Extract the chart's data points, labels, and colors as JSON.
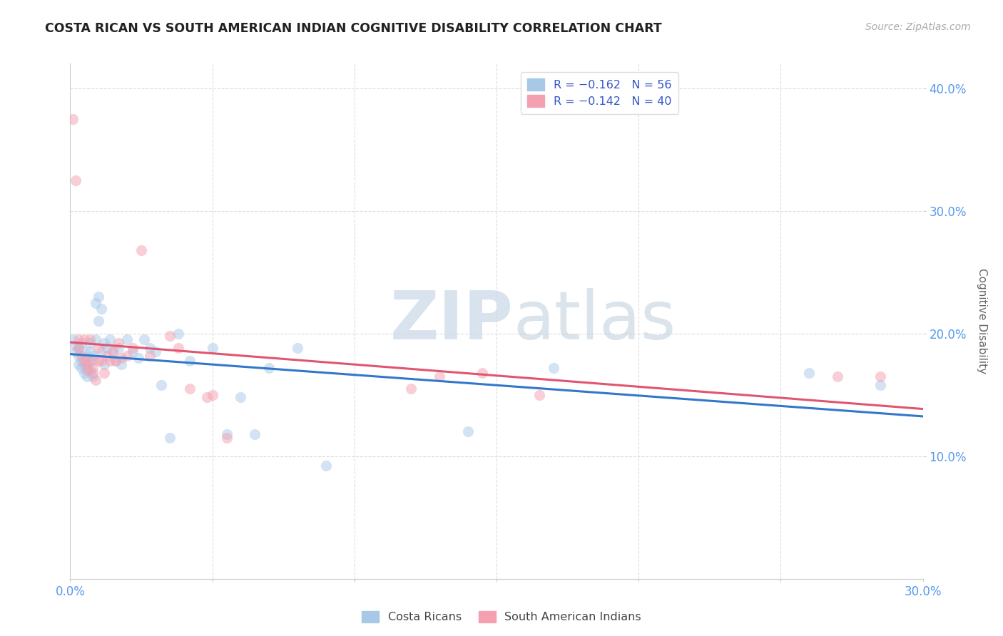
{
  "title": "COSTA RICAN VS SOUTH AMERICAN INDIAN COGNITIVE DISABILITY CORRELATION CHART",
  "source": "Source: ZipAtlas.com",
  "ylabel": "Cognitive Disability",
  "xlim": [
    0.0,
    0.3
  ],
  "ylim": [
    0.0,
    0.42
  ],
  "yticks": [
    0.1,
    0.2,
    0.3,
    0.4
  ],
  "ytick_labels": [
    "10.0%",
    "20.0%",
    "30.0%",
    "40.0%"
  ],
  "xtick_vals": [
    0.0,
    0.05,
    0.1,
    0.15,
    0.2,
    0.25,
    0.3
  ],
  "blue_color": "#a8c8e8",
  "pink_color": "#f4a0b0",
  "blue_line_color": "#3377cc",
  "pink_line_color": "#e05570",
  "watermark_zip": "ZIP",
  "watermark_atlas": "atlas",
  "costa_rican_x": [
    0.001,
    0.002,
    0.002,
    0.003,
    0.003,
    0.003,
    0.004,
    0.004,
    0.004,
    0.005,
    0.005,
    0.005,
    0.006,
    0.006,
    0.006,
    0.007,
    0.007,
    0.007,
    0.008,
    0.008,
    0.008,
    0.009,
    0.009,
    0.01,
    0.01,
    0.011,
    0.011,
    0.012,
    0.012,
    0.013,
    0.014,
    0.015,
    0.016,
    0.017,
    0.018,
    0.02,
    0.022,
    0.024,
    0.026,
    0.028,
    0.03,
    0.032,
    0.035,
    0.038,
    0.042,
    0.05,
    0.055,
    0.06,
    0.065,
    0.07,
    0.08,
    0.09,
    0.14,
    0.17,
    0.26,
    0.285
  ],
  "costa_rican_y": [
    0.195,
    0.19,
    0.185,
    0.182,
    0.175,
    0.188,
    0.192,
    0.178,
    0.172,
    0.185,
    0.168,
    0.175,
    0.165,
    0.172,
    0.18,
    0.192,
    0.17,
    0.185,
    0.178,
    0.182,
    0.165,
    0.225,
    0.195,
    0.23,
    0.21,
    0.22,
    0.185,
    0.192,
    0.175,
    0.188,
    0.195,
    0.185,
    0.178,
    0.188,
    0.175,
    0.195,
    0.185,
    0.18,
    0.195,
    0.188,
    0.185,
    0.158,
    0.115,
    0.2,
    0.178,
    0.188,
    0.118,
    0.148,
    0.118,
    0.172,
    0.188,
    0.092,
    0.12,
    0.172,
    0.168,
    0.158
  ],
  "sa_indian_x": [
    0.001,
    0.002,
    0.003,
    0.003,
    0.004,
    0.005,
    0.005,
    0.006,
    0.006,
    0.007,
    0.007,
    0.008,
    0.008,
    0.009,
    0.01,
    0.01,
    0.011,
    0.012,
    0.013,
    0.014,
    0.015,
    0.016,
    0.017,
    0.018,
    0.02,
    0.022,
    0.025,
    0.028,
    0.035,
    0.038,
    0.042,
    0.048,
    0.05,
    0.055,
    0.12,
    0.13,
    0.145,
    0.165,
    0.27,
    0.285
  ],
  "sa_indian_y": [
    0.375,
    0.325,
    0.195,
    0.188,
    0.182,
    0.195,
    0.178,
    0.175,
    0.17,
    0.195,
    0.178,
    0.172,
    0.168,
    0.162,
    0.178,
    0.188,
    0.178,
    0.168,
    0.182,
    0.178,
    0.185,
    0.178,
    0.192,
    0.18,
    0.182,
    0.188,
    0.268,
    0.182,
    0.198,
    0.188,
    0.155,
    0.148,
    0.15,
    0.115,
    0.155,
    0.165,
    0.168,
    0.15,
    0.165,
    0.165
  ],
  "marker_size": 120,
  "alpha": 0.5,
  "tick_color": "#5599ee",
  "label_color": "#666666"
}
